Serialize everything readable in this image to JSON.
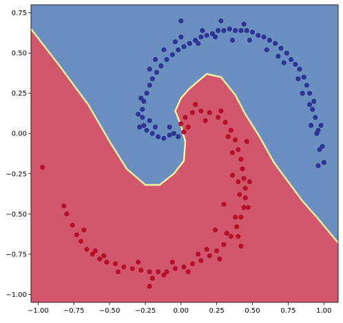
{
  "colors": {
    "region_blue": "#6a8fc0",
    "region_red": "#d2566c",
    "boundary": "#f5f0a0",
    "point_blue": "#2d3592",
    "point_red": "#b40f2b",
    "axis": "#000000"
  },
  "chart_data": {
    "type": "scatter",
    "title": "",
    "xlabel": "",
    "ylabel": "",
    "xlim": [
      -1.05,
      1.1
    ],
    "ylim": [
      -1.05,
      0.8
    ],
    "grid": false,
    "legend": "none",
    "background": "filled decision regions (blue upper-left, red lower-right) with a yellow boundary line",
    "x_ticks": [
      {
        "value": -1.0,
        "label": "−1.00"
      },
      {
        "value": -0.75,
        "label": "−0.75"
      },
      {
        "value": -0.5,
        "label": "−0.50"
      },
      {
        "value": -0.25,
        "label": "−0.25"
      },
      {
        "value": 0.0,
        "label": "0.00"
      },
      {
        "value": 0.25,
        "label": "0.25"
      },
      {
        "value": 0.5,
        "label": "0.50"
      },
      {
        "value": 0.75,
        "label": "0.75"
      },
      {
        "value": 1.0,
        "label": "1.00"
      }
    ],
    "y_ticks": [
      {
        "value": 0.75,
        "label": "0.75"
      },
      {
        "value": 0.5,
        "label": "0.50"
      },
      {
        "value": 0.25,
        "label": "0.25"
      },
      {
        "value": 0.0,
        "label": "0.00"
      },
      {
        "value": -0.25,
        "label": "−0.25"
      },
      {
        "value": -0.5,
        "label": "−0.50"
      },
      {
        "value": -0.75,
        "label": "−0.75"
      },
      {
        "value": -1.0,
        "label": "−1.00"
      }
    ],
    "decision_boundary": [
      [
        -1.05,
        0.65
      ],
      [
        -0.85,
        0.42
      ],
      [
        -0.65,
        0.18
      ],
      [
        -0.5,
        -0.05
      ],
      [
        -0.38,
        -0.22
      ],
      [
        -0.25,
        -0.32
      ],
      [
        -0.15,
        -0.32
      ],
      [
        -0.05,
        -0.25
      ],
      [
        0.02,
        -0.17
      ],
      [
        0.03,
        -0.05
      ],
      [
        0.0,
        0.05
      ],
      [
        -0.04,
        0.14
      ],
      [
        0.0,
        0.22
      ],
      [
        0.06,
        0.28
      ],
      [
        0.18,
        0.37
      ],
      [
        0.28,
        0.35
      ],
      [
        0.38,
        0.24
      ],
      [
        0.45,
        0.12
      ],
      [
        0.55,
        -0.02
      ],
      [
        0.65,
        -0.18
      ],
      [
        0.75,
        -0.3
      ],
      [
        0.85,
        -0.42
      ],
      [
        0.95,
        -0.52
      ],
      [
        1.1,
        -0.68
      ]
    ],
    "series": [
      {
        "class": "blue",
        "points": [
          [
            1.0,
            -0.18
          ],
          [
            0.97,
            -0.1
          ],
          [
            0.96,
            -0.2
          ],
          [
            0.98,
            0.05
          ],
          [
            0.94,
            0.1
          ],
          [
            0.95,
            0.0
          ],
          [
            0.92,
            0.15
          ],
          [
            0.93,
            0.2
          ],
          [
            0.9,
            0.25
          ],
          [
            0.88,
            0.3
          ],
          [
            0.86,
            0.35
          ],
          [
            0.83,
            0.4
          ],
          [
            0.8,
            0.43
          ],
          [
            0.77,
            0.46
          ],
          [
            0.74,
            0.5
          ],
          [
            0.7,
            0.53
          ],
          [
            0.66,
            0.56
          ],
          [
            0.62,
            0.58
          ],
          [
            0.58,
            0.6
          ],
          [
            0.54,
            0.61
          ],
          [
            0.5,
            0.63
          ],
          [
            0.46,
            0.64
          ],
          [
            0.42,
            0.64
          ],
          [
            0.38,
            0.64
          ],
          [
            0.34,
            0.65
          ],
          [
            0.3,
            0.64
          ],
          [
            0.26,
            0.64
          ],
          [
            0.22,
            0.62
          ],
          [
            0.18,
            0.61
          ],
          [
            0.14,
            0.6
          ],
          [
            0.1,
            0.58
          ],
          [
            0.06,
            0.56
          ],
          [
            0.02,
            0.54
          ],
          [
            -0.02,
            0.52
          ],
          [
            -0.06,
            0.49
          ],
          [
            -0.1,
            0.46
          ],
          [
            -0.14,
            0.42
          ],
          [
            -0.17,
            0.38
          ],
          [
            -0.2,
            0.34
          ],
          [
            -0.22,
            0.3
          ],
          [
            -0.24,
            0.25
          ],
          [
            -0.26,
            0.2
          ],
          [
            -0.27,
            0.15
          ],
          [
            -0.27,
            0.1
          ],
          [
            -0.26,
            0.05
          ],
          [
            -0.24,
            0.02
          ],
          [
            -0.2,
            0.0
          ],
          [
            -0.16,
            -0.02
          ],
          [
            -0.12,
            -0.03
          ],
          [
            -0.08,
            -0.01
          ],
          [
            -0.05,
            0.0
          ],
          [
            -0.02,
            -0.02
          ],
          [
            -0.3,
            0.12
          ],
          [
            -0.22,
            0.4
          ],
          [
            -0.12,
            0.52
          ],
          [
            0.0,
            0.6
          ],
          [
            0.12,
            0.56
          ],
          [
            0.24,
            0.6
          ],
          [
            0.36,
            0.58
          ],
          [
            0.48,
            0.58
          ],
          [
            0.6,
            0.52
          ],
          [
            0.72,
            0.44
          ],
          [
            0.82,
            0.34
          ],
          [
            0.9,
            0.18
          ],
          [
            0.96,
            0.02
          ],
          [
            0.99,
            -0.08
          ],
          [
            0.91,
            0.05
          ],
          [
            0.85,
            0.25
          ],
          [
            0.68,
            0.48
          ],
          [
            0.44,
            0.68
          ],
          [
            0.28,
            0.7
          ],
          [
            0.15,
            0.64
          ],
          [
            -0.04,
            0.57
          ],
          [
            -0.18,
            0.46
          ],
          [
            -0.28,
            0.22
          ],
          [
            -0.29,
            0.04
          ],
          [
            -0.18,
            0.04
          ],
          [
            -0.08,
            0.04
          ],
          [
            -0.22,
            0.08
          ],
          [
            0.0,
            0.7
          ]
        ]
      },
      {
        "class": "red",
        "points": [
          [
            -0.97,
            -0.21
          ],
          [
            -0.82,
            -0.45
          ],
          [
            -0.8,
            -0.5
          ],
          [
            -0.76,
            -0.57
          ],
          [
            -0.73,
            -0.63
          ],
          [
            -0.7,
            -0.67
          ],
          [
            -0.66,
            -0.72
          ],
          [
            -0.62,
            -0.75
          ],
          [
            -0.57,
            -0.78
          ],
          [
            -0.52,
            -0.8
          ],
          [
            -0.46,
            -0.81
          ],
          [
            -0.4,
            -0.83
          ],
          [
            -0.34,
            -0.84
          ],
          [
            -0.28,
            -0.85
          ],
          [
            -0.22,
            -0.86
          ],
          [
            -0.16,
            -0.86
          ],
          [
            -0.1,
            -0.86
          ],
          [
            -0.04,
            -0.84
          ],
          [
            0.02,
            -0.83
          ],
          [
            0.08,
            -0.81
          ],
          [
            0.14,
            -0.79
          ],
          [
            0.2,
            -0.76
          ],
          [
            0.25,
            -0.73
          ],
          [
            0.3,
            -0.69
          ],
          [
            0.35,
            -0.64
          ],
          [
            0.39,
            -0.58
          ],
          [
            0.42,
            -0.52
          ],
          [
            0.44,
            -0.46
          ],
          [
            0.45,
            -0.4
          ],
          [
            0.45,
            -0.34
          ],
          [
            0.44,
            -0.28
          ],
          [
            0.43,
            -0.22
          ],
          [
            0.42,
            -0.16
          ],
          [
            0.4,
            -0.1
          ],
          [
            0.38,
            -0.04
          ],
          [
            0.35,
            0.02
          ],
          [
            0.31,
            0.07
          ],
          [
            0.26,
            0.1
          ],
          [
            0.2,
            0.13
          ],
          [
            0.14,
            0.14
          ],
          [
            0.08,
            0.13
          ],
          [
            0.03,
            0.1
          ],
          [
            0.0,
            0.06
          ],
          [
            0.02,
            0.01
          ],
          [
            -0.6,
            -0.73
          ],
          [
            -0.44,
            -0.86
          ],
          [
            -0.2,
            -0.9
          ],
          [
            -0.12,
            -0.88
          ],
          [
            0.05,
            -0.86
          ],
          [
            0.18,
            -0.72
          ],
          [
            0.32,
            -0.62
          ],
          [
            0.4,
            -0.64
          ],
          [
            0.47,
            -0.46
          ],
          [
            0.48,
            -0.3
          ],
          [
            0.4,
            -0.3
          ],
          [
            0.36,
            -0.12
          ],
          [
            0.46,
            -0.05
          ],
          [
            0.33,
            -0.02
          ],
          [
            0.28,
            0.14
          ],
          [
            0.17,
            0.08
          ],
          [
            0.1,
            0.18
          ],
          [
            0.05,
            0.04
          ],
          [
            -0.68,
            -0.6
          ],
          [
            -0.54,
            -0.76
          ],
          [
            -0.3,
            -0.8
          ],
          [
            -0.06,
            -0.8
          ],
          [
            0.12,
            -0.75
          ],
          [
            0.27,
            -0.78
          ],
          [
            0.38,
            -0.52
          ],
          [
            0.41,
            -0.38
          ],
          [
            0.36,
            -0.26
          ],
          [
            0.3,
            -0.44
          ],
          [
            0.24,
            -0.6
          ],
          [
            0.42,
            -0.7
          ],
          [
            -0.22,
            -0.95
          ]
        ]
      }
    ]
  }
}
